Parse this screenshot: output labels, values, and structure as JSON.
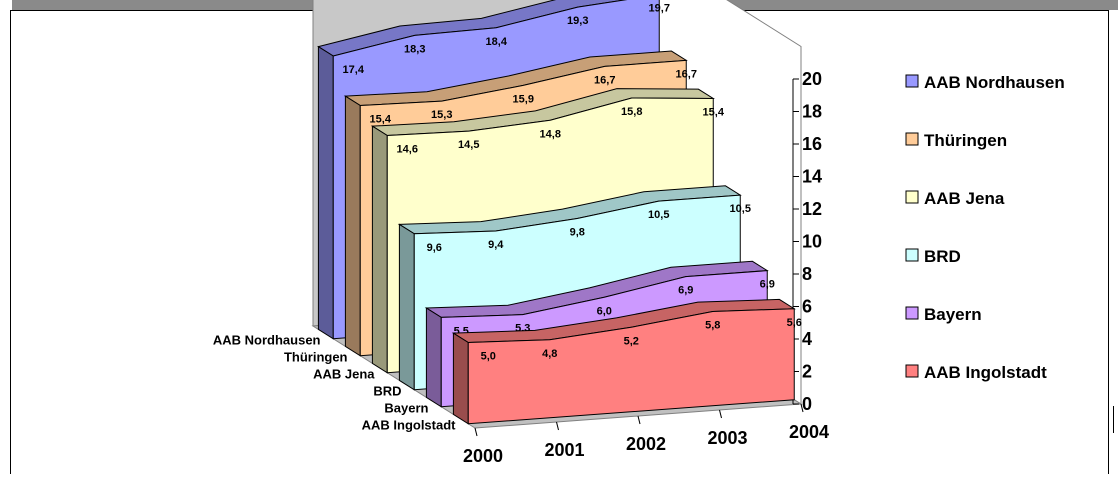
{
  "chart_data": {
    "type": "area",
    "x": [
      "2000",
      "2001",
      "2002",
      "2003",
      "2004"
    ],
    "series": [
      {
        "name": "AAB Ingolstadt",
        "values": [
          5.0,
          4.8,
          5.2,
          5.8,
          5.6
        ],
        "labels": [
          "5,0",
          "4,8",
          "5,2",
          "5,8",
          "5,6"
        ],
        "color": "#FF8080"
      },
      {
        "name": "Bayern",
        "values": [
          5.5,
          5.3,
          6.0,
          6.9,
          6.9
        ],
        "labels": [
          "5,5",
          "5,3",
          "6,0",
          "6,9",
          "6,9"
        ],
        "color": "#CC99FF"
      },
      {
        "name": "BRD",
        "values": [
          9.6,
          9.4,
          9.8,
          10.5,
          10.5
        ],
        "labels": [
          "9,6",
          "9,4",
          "9,8",
          "10,5",
          "10,5"
        ],
        "color": "#CCFFFF"
      },
      {
        "name": "AAB Jena",
        "values": [
          14.6,
          14.5,
          14.8,
          15.8,
          15.4
        ],
        "labels": [
          "14,6",
          "14,5",
          "14,8",
          "15,8",
          "15,4"
        ],
        "color": "#FFFFCC"
      },
      {
        "name": "Thüringen",
        "values": [
          15.4,
          15.3,
          15.9,
          16.7,
          16.7
        ],
        "labels": [
          "15,4",
          "15,3",
          "15,9",
          "16,7",
          "16,7"
        ],
        "color": "#FFCC99"
      },
      {
        "name": "AAB Nordhausen",
        "values": [
          17.4,
          18.3,
          18.4,
          19.3,
          19.7
        ],
        "labels": [
          "17,4",
          "18,3",
          "18,4",
          "19,3",
          "19,7"
        ],
        "color": "#9999FF"
      }
    ],
    "yticks": [
      "0",
      "2",
      "4",
      "6",
      "8",
      "10",
      "12",
      "14",
      "16",
      "18",
      "20"
    ],
    "ylim": [
      0,
      20
    ],
    "depth_labels": [
      "AAB Nordhausen",
      "Thüringen",
      "AAB Jena",
      "BRD",
      "Bayern",
      "AAB Ingolstadt"
    ],
    "legend": [
      "AAB Nordhausen",
      "Thüringen",
      "AAB Jena",
      "BRD",
      "Bayern",
      "AAB Ingolstadt"
    ],
    "legend_position": "right",
    "grid": false
  }
}
